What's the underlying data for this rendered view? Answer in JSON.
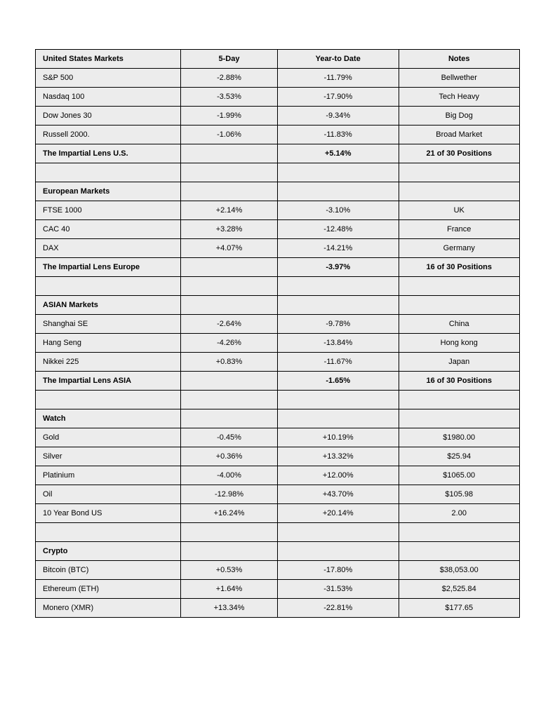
{
  "columns": [
    "United States Markets",
    "5-Day",
    "Year-to Date",
    "Notes"
  ],
  "styling": {
    "background_color": "#ffffff",
    "cell_background": "#ececec",
    "header_background": "#e8e8e8",
    "border_color": "#000000",
    "font_family": "Arial",
    "font_size": 11,
    "column_widths": [
      "30%",
      "20%",
      "25%",
      "25%"
    ],
    "column_align": [
      "left",
      "center",
      "center",
      "center"
    ]
  },
  "rows": [
    {
      "type": "header",
      "cells": [
        "United States Markets",
        "5-Day",
        "Year-to Date",
        "Notes"
      ]
    },
    {
      "type": "data",
      "cells": [
        "S&P 500",
        "-2.88%",
        "-11.79%",
        "Bellwether"
      ]
    },
    {
      "type": "data",
      "cells": [
        "Nasdaq 100",
        "-3.53%",
        "-17.90%",
        "Tech Heavy"
      ]
    },
    {
      "type": "data",
      "cells": [
        "Dow Jones 30",
        "-1.99%",
        "-9.34%",
        "Big Dog"
      ]
    },
    {
      "type": "data",
      "cells": [
        "Russell 2000.",
        "-1.06%",
        "-11.83%",
        "Broad Market"
      ]
    },
    {
      "type": "bold",
      "cells": [
        "The Impartial Lens U.S.",
        "",
        "+5.14%",
        "21 of 30 Positions"
      ]
    },
    {
      "type": "empty",
      "cells": [
        "",
        "",
        "",
        ""
      ]
    },
    {
      "type": "section",
      "cells": [
        "European Markets",
        "",
        "",
        ""
      ]
    },
    {
      "type": "data",
      "cells": [
        "FTSE 1000",
        "+2.14%",
        "-3.10%",
        "UK"
      ]
    },
    {
      "type": "data",
      "cells": [
        "CAC 40",
        "+3.28%",
        "-12.48%",
        "France"
      ]
    },
    {
      "type": "data",
      "cells": [
        "DAX",
        "+4.07%",
        "-14.21%",
        "Germany"
      ]
    },
    {
      "type": "bold",
      "cells": [
        "The Impartial Lens Europe",
        "",
        "-3.97%",
        "16 of 30 Positions"
      ]
    },
    {
      "type": "empty",
      "cells": [
        "",
        "",
        "",
        ""
      ]
    },
    {
      "type": "section",
      "cells": [
        "ASIAN Markets",
        "",
        "",
        ""
      ]
    },
    {
      "type": "data",
      "cells": [
        "Shanghai SE",
        "-2.64%",
        "-9.78%",
        "China"
      ]
    },
    {
      "type": "data",
      "cells": [
        "Hang Seng",
        "-4.26%",
        "-13.84%",
        "Hong kong"
      ]
    },
    {
      "type": "data",
      "cells": [
        "Nikkei 225",
        "+0.83%",
        "-11.67%",
        "Japan"
      ]
    },
    {
      "type": "bold",
      "cells": [
        "The Impartial Lens ASIA",
        "",
        "-1.65%",
        "16 of 30 Positions"
      ]
    },
    {
      "type": "empty",
      "cells": [
        "",
        "",
        "",
        ""
      ]
    },
    {
      "type": "section",
      "cells": [
        "Watch",
        "",
        "",
        ""
      ]
    },
    {
      "type": "data",
      "cells": [
        "Gold",
        "-0.45%",
        "+10.19%",
        "$1980.00"
      ]
    },
    {
      "type": "data",
      "cells": [
        "Silver",
        "+0.36%",
        "+13.32%",
        "$25.94"
      ]
    },
    {
      "type": "data",
      "cells": [
        "Platinium",
        "-4.00%",
        "+12.00%",
        "$1065.00"
      ]
    },
    {
      "type": "data",
      "cells": [
        "Oil",
        "-12.98%",
        "+43.70%",
        "$105.98"
      ]
    },
    {
      "type": "data",
      "cells": [
        "10 Year Bond US",
        "+16.24%",
        "+20.14%",
        "2.00"
      ]
    },
    {
      "type": "empty",
      "cells": [
        "",
        "",
        "",
        ""
      ]
    },
    {
      "type": "section",
      "cells": [
        "Crypto",
        "",
        "",
        ""
      ]
    },
    {
      "type": "data",
      "cells": [
        "Bitcoin (BTC)",
        "+0.53%",
        "-17.80%",
        "$38,053.00"
      ]
    },
    {
      "type": "data",
      "cells": [
        "Ethereum (ETH)",
        "+1.64%",
        "-31.53%",
        "$2,525.84"
      ]
    },
    {
      "type": "data",
      "cells": [
        "Monero (XMR)",
        "+13.34%",
        "-22.81%",
        "$177.65"
      ]
    }
  ]
}
